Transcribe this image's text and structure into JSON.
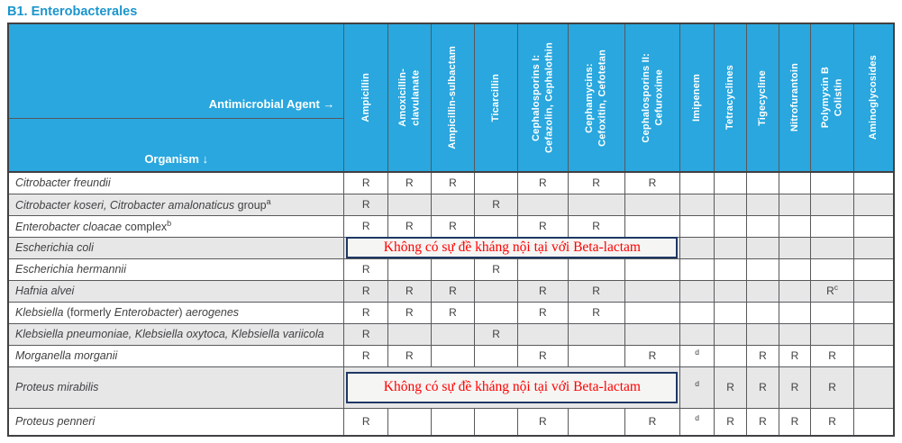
{
  "title": "B1. Enterobacterales",
  "colors": {
    "title": "#1B95CD",
    "header_bg": "#29A7DE",
    "header_text": "#FFFFFF",
    "row_alt_bg": "#E7E7E8",
    "grid_border": "#58595B",
    "outer_border": "#414042",
    "cell_text": "#414042",
    "overlay_border": "#1F3864",
    "overlay_bg": "#F5F5F3",
    "overlay_text": "#FF0000"
  },
  "table": {
    "corner": {
      "agent_label": "Antimicrobial Agent →",
      "organism_label": "Organism ↓"
    },
    "columns": [
      {
        "label": "Ampicillin"
      },
      {
        "label": "Amoxicillin-\nclavulanate"
      },
      {
        "label": "Ampicillin-sulbactam"
      },
      {
        "label": "Ticarcillin"
      },
      {
        "label": "Cephalosporins I:\nCefazolin, Cephalothin"
      },
      {
        "label": "Cephamycins:\nCefoxitin, Cefotetan"
      },
      {
        "label": "Cephalosporins II:\nCefuroxime"
      },
      {
        "label": "Imipenem"
      },
      {
        "label": "Tetracyclines"
      },
      {
        "label": "Tigecycline"
      },
      {
        "label": "Nitrofurantoin"
      },
      {
        "label": "Polymyxin B\nColistin"
      },
      {
        "label": "Aminoglycosides"
      }
    ],
    "overlay_note": "Không có sự đề kháng nội tại với Beta-lactam",
    "overlay_span": 7,
    "rows": [
      {
        "organism": [
          {
            "t": "Citrobacter freundii",
            "i": true
          }
        ],
        "cells": [
          "R",
          "R",
          "R",
          "",
          "R",
          "R",
          "R",
          "",
          "",
          "",
          "",
          "",
          ""
        ]
      },
      {
        "organism": [
          {
            "t": "Citrobacter koseri, Citrobacter amalonaticus",
            "i": true
          },
          {
            "t": " group"
          },
          {
            "t": "a",
            "sup": true
          }
        ],
        "cells": [
          "R",
          "",
          "",
          "R",
          "",
          "",
          "",
          "",
          "",
          "",
          "",
          "",
          ""
        ]
      },
      {
        "organism": [
          {
            "t": "Enterobacter cloacae",
            "i": true
          },
          {
            "t": " complex"
          },
          {
            "t": "b",
            "sup": true
          }
        ],
        "cells": [
          "R",
          "R",
          "R",
          "",
          "R",
          "R",
          "",
          "",
          "",
          "",
          "",
          "",
          ""
        ]
      },
      {
        "organism": [
          {
            "t": "Escherichia coli",
            "i": true
          }
        ],
        "overlay": true,
        "cells": [
          "",
          "",
          "",
          "",
          "",
          ""
        ]
      },
      {
        "organism": [
          {
            "t": "Escherichia hermannii",
            "i": true
          }
        ],
        "cells": [
          "R",
          "",
          "",
          "R",
          "",
          "",
          "",
          "",
          "",
          "",
          "",
          "",
          ""
        ]
      },
      {
        "organism": [
          {
            "t": "Hafnia alvei",
            "i": true
          }
        ],
        "cells": [
          "R",
          "R",
          "R",
          "",
          "R",
          "R",
          "",
          "",
          "",
          "",
          "",
          "R^c",
          ""
        ]
      },
      {
        "organism": [
          {
            "t": "Klebsiella",
            "i": true
          },
          {
            "t": " (formerly "
          },
          {
            "t": "Enterobacter",
            "i": true
          },
          {
            "t": ") "
          },
          {
            "t": "aerogenes",
            "i": true
          }
        ],
        "cells": [
          "R",
          "R",
          "R",
          "",
          "R",
          "R",
          "",
          "",
          "",
          "",
          "",
          "",
          ""
        ]
      },
      {
        "organism": [
          {
            "t": "Klebsiella pneumoniae, Klebsiella oxytoca, Klebsiella variicola",
            "i": true
          }
        ],
        "cells": [
          "R",
          "",
          "",
          "R",
          "",
          "",
          "",
          "",
          "",
          "",
          "",
          "",
          ""
        ]
      },
      {
        "organism": [
          {
            "t": "Morganella morganii",
            "i": true
          }
        ],
        "cells": [
          "R",
          "R",
          "",
          "",
          "R",
          "",
          "R",
          "^d",
          "",
          "R",
          "R",
          "R",
          ""
        ]
      },
      {
        "organism": [
          {
            "t": "Proteus mirabilis",
            "i": true
          }
        ],
        "overlay": true,
        "tall": true,
        "cells": [
          "^d",
          "R",
          "R",
          "R",
          "R",
          ""
        ]
      },
      {
        "organism": [
          {
            "t": "Proteus penneri",
            "i": true
          }
        ],
        "last": true,
        "cells": [
          "R",
          "",
          "",
          "",
          "R",
          "",
          "R",
          "^d",
          "R",
          "R",
          "R",
          "R",
          ""
        ]
      }
    ]
  }
}
